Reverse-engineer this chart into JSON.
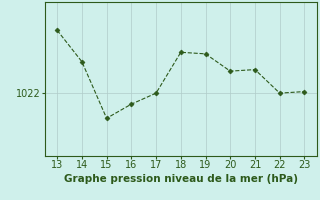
{
  "x": [
    13,
    14,
    15,
    16,
    17,
    18,
    19,
    20,
    21,
    22,
    23
  ],
  "y": [
    1026.0,
    1024.0,
    1020.4,
    1021.3,
    1022.0,
    1024.6,
    1024.5,
    1023.4,
    1023.5,
    1022.0,
    1022.1
  ],
  "line_color": "#2d5a1b",
  "marker": "D",
  "marker_size": 2.5,
  "bg_color": "#cff0eb",
  "grid_color": "#b0ccc9",
  "xlabel": "Graphe pression niveau de la mer (hPa)",
  "xlabel_color": "#2d5a1b",
  "xlabel_fontsize": 7.5,
  "tick_color": "#2d5a1b",
  "tick_fontsize": 7,
  "ytick_label": "1022",
  "ytick_value": 1022,
  "ylim": [
    1018.0,
    1027.8
  ],
  "xlim": [
    12.5,
    23.5
  ]
}
